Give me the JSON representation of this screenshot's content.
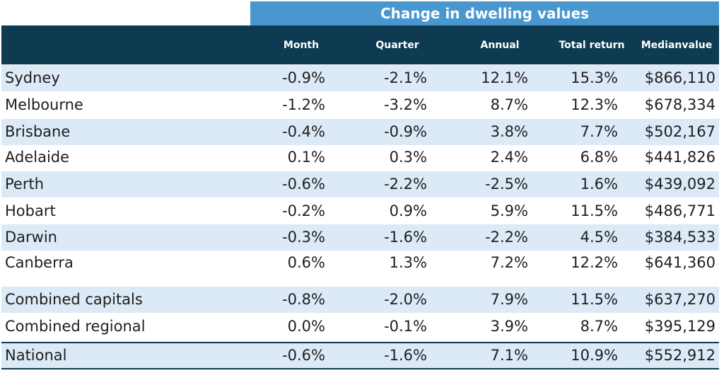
{
  "table": {
    "group_header": "Change in dwelling values",
    "columns": {
      "month": "Month",
      "quarter": "Quarter",
      "annual": "Annual",
      "total_return": "Total return",
      "median_line1": "Median",
      "median_line2": "value"
    },
    "rows": [
      {
        "name": "Sydney",
        "month": "-0.9%",
        "quarter": "-2.1%",
        "annual": "12.1%",
        "total": "15.3%",
        "median": "$866,110"
      },
      {
        "name": "Melbourne",
        "month": "-1.2%",
        "quarter": "-3.2%",
        "annual": "8.7%",
        "total": "12.3%",
        "median": "$678,334"
      },
      {
        "name": "Brisbane",
        "month": "-0.4%",
        "quarter": "-0.9%",
        "annual": "3.8%",
        "total": "7.7%",
        "median": "$502,167"
      },
      {
        "name": "Adelaide",
        "month": "0.1%",
        "quarter": "0.3%",
        "annual": "2.4%",
        "total": "6.8%",
        "median": "$441,826"
      },
      {
        "name": "Perth",
        "month": "-0.6%",
        "quarter": "-2.2%",
        "annual": "-2.5%",
        "total": "1.6%",
        "median": "$439,092"
      },
      {
        "name": "Hobart",
        "month": "-0.2%",
        "quarter": "0.9%",
        "annual": "5.9%",
        "total": "11.5%",
        "median": "$486,771"
      },
      {
        "name": "Darwin",
        "month": "-0.3%",
        "quarter": "-1.6%",
        "annual": "-2.2%",
        "total": "4.5%",
        "median": "$384,533"
      },
      {
        "name": "Canberra",
        "month": "0.6%",
        "quarter": "1.3%",
        "annual": "7.2%",
        "total": "12.2%",
        "median": "$641,360"
      },
      {
        "name": "Combined capitals",
        "month": "-0.8%",
        "quarter": "-2.0%",
        "annual": "7.9%",
        "total": "11.5%",
        "median": "$637,270"
      },
      {
        "name": "Combined regional",
        "month": "0.0%",
        "quarter": "-0.1%",
        "annual": "3.9%",
        "total": "8.7%",
        "median": "$395,129"
      },
      {
        "name": "National",
        "month": "-0.6%",
        "quarter": "-1.6%",
        "annual": "7.1%",
        "total": "10.9%",
        "median": "$552,912"
      }
    ]
  },
  "colors": {
    "banner": "#4a96cf",
    "header": "#0e3a52",
    "band": "#dce9f7"
  }
}
